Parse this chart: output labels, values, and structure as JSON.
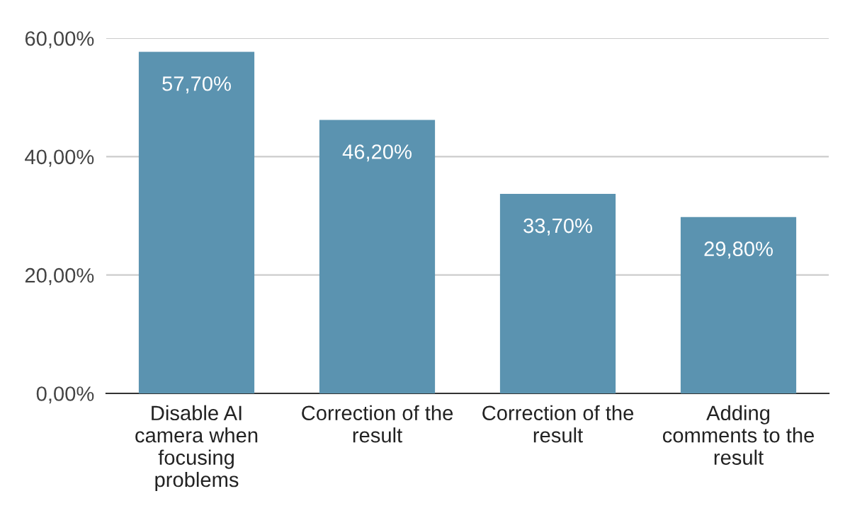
{
  "chart_data": {
    "type": "bar",
    "categories": [
      "Disable AI\ncamera when\nfocusing\nproblems",
      "Correction of the\nresult",
      "Correction of the\nresult",
      "Adding\ncomments to the\nresult"
    ],
    "values": [
      57.7,
      46.2,
      33.7,
      29.8
    ],
    "value_labels": [
      "57,70%",
      "46,20%",
      "33,70%",
      "29,80%"
    ],
    "color": "#5b93b0",
    "ylim": [
      0,
      60
    ],
    "yticks": [
      {
        "value": 0,
        "label": "0,00%"
      },
      {
        "value": 20,
        "label": "20,00%"
      },
      {
        "value": 40,
        "label": "40,00%"
      },
      {
        "value": 60,
        "label": "60,00%"
      }
    ],
    "grid": "y"
  }
}
